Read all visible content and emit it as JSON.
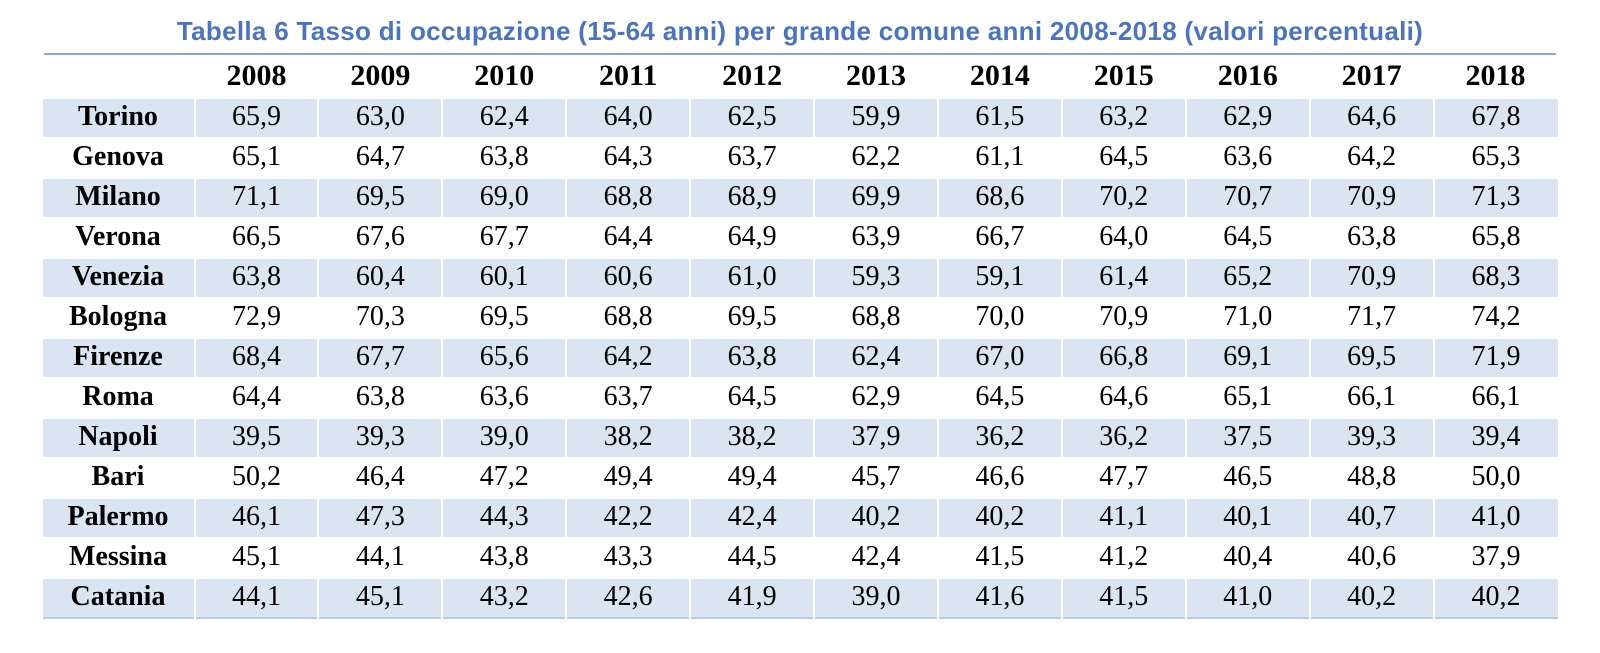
{
  "title": "Tabella 6 Tasso di occupazione (15-64 anni) per grande comune anni 2008-2018 (valori percentuali)",
  "colors": {
    "title_blue": "#4d74b8",
    "stripe_blue": "#dbe5f1",
    "rule_blue_gray": "#8fa6c6",
    "table_bottom_edge": "#b9cbe3",
    "text_black": "#000000"
  },
  "chart_data": {
    "type": "table",
    "title": "Tabella 6 Tasso di occupazione (15-64 anni) per grande comune anni 2008-2018 (valori percentuali)",
    "decimal_separator": ",",
    "unit": "valori percentuali",
    "columns": [
      "2008",
      "2009",
      "2010",
      "2011",
      "2012",
      "2013",
      "2014",
      "2015",
      "2016",
      "2017",
      "2018"
    ],
    "rows": [
      {
        "city": "Torino",
        "values": [
          "65,9",
          "63,0",
          "62,4",
          "64,0",
          "62,5",
          "59,9",
          "61,5",
          "63,2",
          "62,9",
          "64,6",
          "67,8"
        ]
      },
      {
        "city": "Genova",
        "values": [
          "65,1",
          "64,7",
          "63,8",
          "64,3",
          "63,7",
          "62,2",
          "61,1",
          "64,5",
          "63,6",
          "64,2",
          "65,3"
        ]
      },
      {
        "city": "Milano",
        "values": [
          "71,1",
          "69,5",
          "69,0",
          "68,8",
          "68,9",
          "69,9",
          "68,6",
          "70,2",
          "70,7",
          "70,9",
          "71,3"
        ]
      },
      {
        "city": "Verona",
        "values": [
          "66,5",
          "67,6",
          "67,7",
          "64,4",
          "64,9",
          "63,9",
          "66,7",
          "64,0",
          "64,5",
          "63,8",
          "65,8"
        ]
      },
      {
        "city": "Venezia",
        "values": [
          "63,8",
          "60,4",
          "60,1",
          "60,6",
          "61,0",
          "59,3",
          "59,1",
          "61,4",
          "65,2",
          "70,9",
          "68,3"
        ]
      },
      {
        "city": "Bologna",
        "values": [
          "72,9",
          "70,3",
          "69,5",
          "68,8",
          "69,5",
          "68,8",
          "70,0",
          "70,9",
          "71,0",
          "71,7",
          "74,2"
        ]
      },
      {
        "city": "Firenze",
        "values": [
          "68,4",
          "67,7",
          "65,6",
          "64,2",
          "63,8",
          "62,4",
          "67,0",
          "66,8",
          "69,1",
          "69,5",
          "71,9"
        ]
      },
      {
        "city": "Roma",
        "values": [
          "64,4",
          "63,8",
          "63,6",
          "63,7",
          "64,5",
          "62,9",
          "64,5",
          "64,6",
          "65,1",
          "66,1",
          "66,1"
        ]
      },
      {
        "city": "Napoli",
        "values": [
          "39,5",
          "39,3",
          "39,0",
          "38,2",
          "38,2",
          "37,9",
          "36,2",
          "36,2",
          "37,5",
          "39,3",
          "39,4"
        ]
      },
      {
        "city": "Bari",
        "values": [
          "50,2",
          "46,4",
          "47,2",
          "49,4",
          "49,4",
          "45,7",
          "46,6",
          "47,7",
          "46,5",
          "48,8",
          "50,0"
        ]
      },
      {
        "city": "Palermo",
        "values": [
          "46,1",
          "47,3",
          "44,3",
          "42,2",
          "42,4",
          "40,2",
          "40,2",
          "41,1",
          "40,1",
          "40,7",
          "41,0"
        ]
      },
      {
        "city": "Messina",
        "values": [
          "45,1",
          "44,1",
          "43,8",
          "43,3",
          "44,5",
          "42,4",
          "41,5",
          "41,2",
          "40,4",
          "40,6",
          "37,9"
        ]
      },
      {
        "city": "Catania",
        "values": [
          "44,1",
          "45,1",
          "43,2",
          "42,6",
          "41,9",
          "39,0",
          "41,6",
          "41,5",
          "41,0",
          "40,2",
          "40,2"
        ]
      }
    ]
  }
}
